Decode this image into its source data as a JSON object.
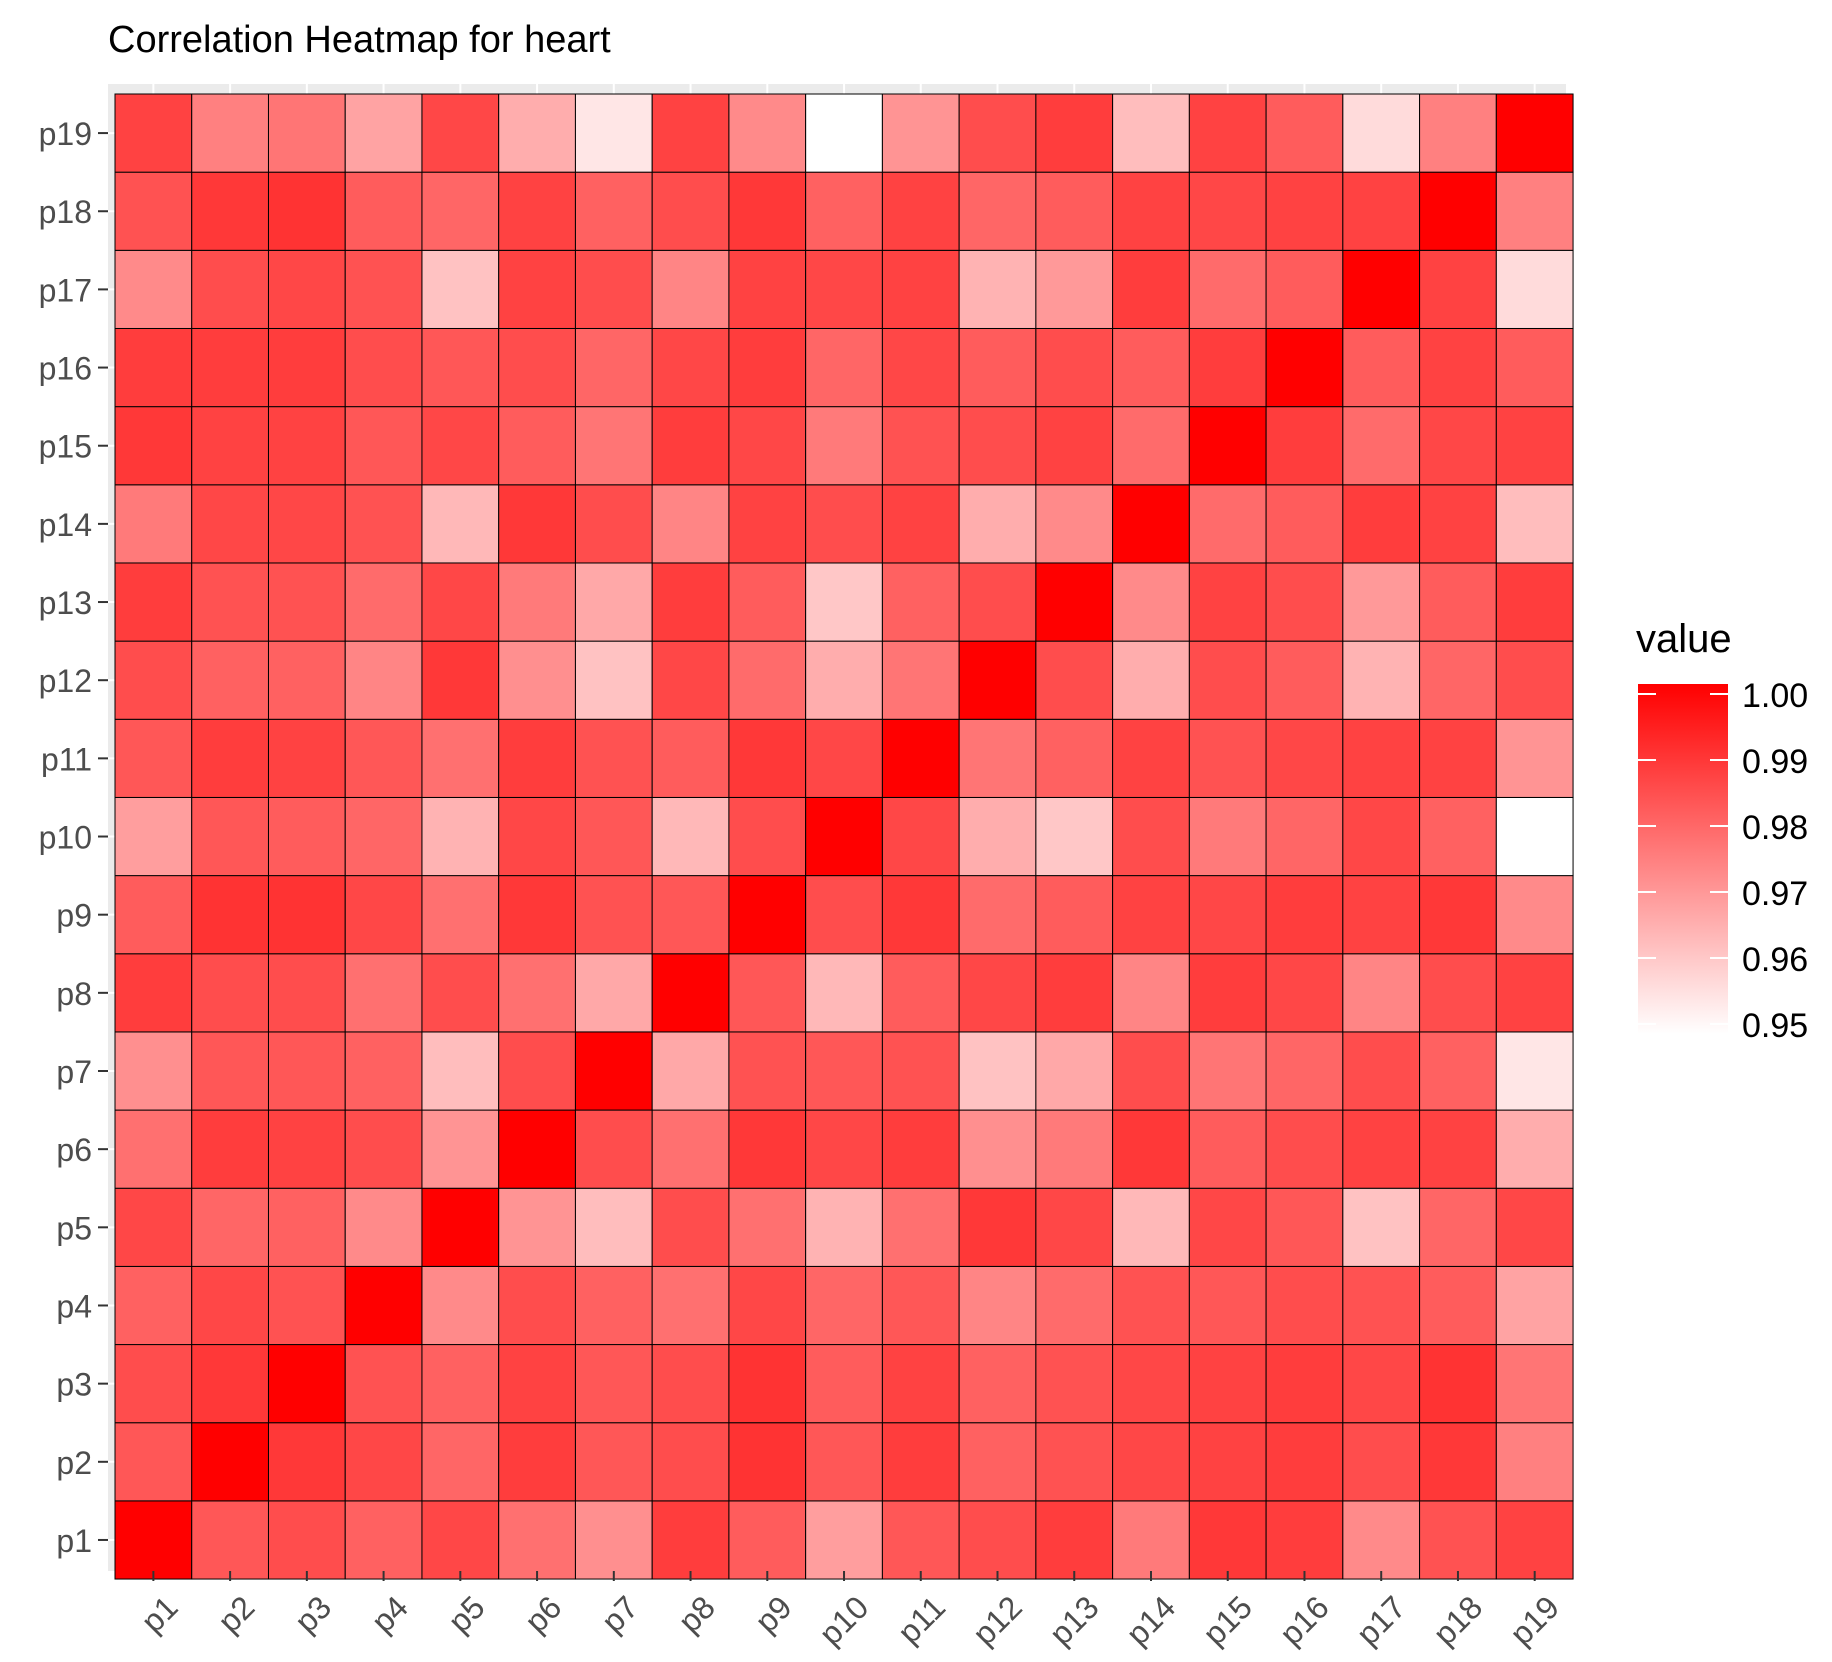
{
  "chart_data": {
    "type": "heatmap",
    "title": "Correlation Heatmap for heart",
    "xlabel": "",
    "ylabel": "",
    "x_categories": [
      "p1",
      "p2",
      "p3",
      "p4",
      "p5",
      "p6",
      "p7",
      "p8",
      "p9",
      "p10",
      "p11",
      "p12",
      "p13",
      "p14",
      "p15",
      "p16",
      "p17",
      "p18",
      "p19"
    ],
    "y_categories": [
      "p1",
      "p2",
      "p3",
      "p4",
      "p5",
      "p6",
      "p7",
      "p8",
      "p9",
      "p10",
      "p11",
      "p12",
      "p13",
      "p14",
      "p15",
      "p16",
      "p17",
      "p18",
      "p19"
    ],
    "legend": {
      "title": "value",
      "position": "right",
      "range": [
        0.95,
        1.0
      ],
      "breaks": [
        "1.00",
        "0.99",
        "0.98",
        "0.97",
        "0.96",
        "0.95"
      ],
      "low_color": "#ffffff",
      "high_color": "#ff0000"
    },
    "values": [
      [
        1.0,
        0.983,
        0.985,
        0.981,
        0.986,
        0.978,
        0.972,
        0.988,
        0.982,
        0.969,
        0.983,
        0.985,
        0.988,
        0.976,
        0.989,
        0.988,
        0.973,
        0.984,
        0.987
      ],
      [
        0.983,
        1.0,
        0.989,
        0.986,
        0.98,
        0.988,
        0.983,
        0.985,
        0.99,
        0.983,
        0.988,
        0.981,
        0.984,
        0.986,
        0.987,
        0.988,
        0.985,
        0.989,
        0.975
      ],
      [
        0.985,
        0.989,
        1.0,
        0.984,
        0.981,
        0.987,
        0.983,
        0.985,
        0.99,
        0.982,
        0.987,
        0.981,
        0.984,
        0.986,
        0.987,
        0.988,
        0.986,
        0.99,
        0.977
      ],
      [
        0.981,
        0.986,
        0.984,
        1.0,
        0.973,
        0.985,
        0.981,
        0.978,
        0.986,
        0.98,
        0.983,
        0.974,
        0.979,
        0.984,
        0.983,
        0.985,
        0.984,
        0.982,
        0.968
      ],
      [
        0.986,
        0.98,
        0.981,
        0.973,
        1.0,
        0.971,
        0.963,
        0.985,
        0.978,
        0.965,
        0.978,
        0.989,
        0.986,
        0.964,
        0.986,
        0.983,
        0.962,
        0.98,
        0.986
      ],
      [
        0.978,
        0.988,
        0.987,
        0.985,
        0.971,
        1.0,
        0.985,
        0.978,
        0.989,
        0.986,
        0.988,
        0.972,
        0.976,
        0.989,
        0.982,
        0.985,
        0.987,
        0.987,
        0.966
      ],
      [
        0.972,
        0.983,
        0.983,
        0.981,
        0.963,
        0.985,
        1.0,
        0.967,
        0.984,
        0.983,
        0.984,
        0.962,
        0.967,
        0.985,
        0.977,
        0.98,
        0.985,
        0.981,
        0.955
      ],
      [
        0.988,
        0.985,
        0.985,
        0.978,
        0.985,
        0.978,
        0.967,
        1.0,
        0.983,
        0.964,
        0.982,
        0.986,
        0.988,
        0.974,
        0.988,
        0.986,
        0.974,
        0.985,
        0.987
      ],
      [
        0.982,
        0.99,
        0.99,
        0.986,
        0.978,
        0.989,
        0.984,
        0.983,
        1.0,
        0.985,
        0.989,
        0.979,
        0.982,
        0.987,
        0.986,
        0.988,
        0.987,
        0.989,
        0.973
      ],
      [
        0.969,
        0.983,
        0.982,
        0.98,
        0.965,
        0.986,
        0.983,
        0.964,
        0.985,
        1.0,
        0.986,
        0.966,
        0.961,
        0.985,
        0.976,
        0.98,
        0.986,
        0.981,
        0.95
      ],
      [
        0.983,
        0.988,
        0.987,
        0.983,
        0.978,
        0.988,
        0.984,
        0.982,
        0.989,
        0.986,
        1.0,
        0.977,
        0.981,
        0.987,
        0.984,
        0.986,
        0.987,
        0.987,
        0.971
      ],
      [
        0.985,
        0.981,
        0.981,
        0.974,
        0.989,
        0.972,
        0.962,
        0.986,
        0.979,
        0.966,
        0.977,
        1.0,
        0.985,
        0.966,
        0.985,
        0.982,
        0.965,
        0.98,
        0.985
      ],
      [
        0.988,
        0.984,
        0.984,
        0.979,
        0.986,
        0.976,
        0.967,
        0.988,
        0.982,
        0.961,
        0.981,
        0.985,
        1.0,
        0.973,
        0.987,
        0.985,
        0.97,
        0.982,
        0.988
      ],
      [
        0.976,
        0.986,
        0.986,
        0.984,
        0.964,
        0.989,
        0.985,
        0.974,
        0.987,
        0.985,
        0.987,
        0.966,
        0.973,
        1.0,
        0.979,
        0.982,
        0.988,
        0.987,
        0.963
      ],
      [
        0.989,
        0.987,
        0.987,
        0.983,
        0.986,
        0.982,
        0.977,
        0.988,
        0.986,
        0.976,
        0.984,
        0.985,
        0.987,
        0.979,
        1.0,
        0.988,
        0.979,
        0.986,
        0.987
      ],
      [
        0.988,
        0.988,
        0.988,
        0.985,
        0.983,
        0.985,
        0.98,
        0.986,
        0.988,
        0.98,
        0.986,
        0.982,
        0.985,
        0.982,
        0.988,
        1.0,
        0.982,
        0.987,
        0.982
      ],
      [
        0.973,
        0.985,
        0.986,
        0.984,
        0.962,
        0.987,
        0.985,
        0.974,
        0.987,
        0.986,
        0.987,
        0.965,
        0.97,
        0.988,
        0.979,
        0.982,
        1.0,
        0.987,
        0.957
      ],
      [
        0.984,
        0.989,
        0.99,
        0.982,
        0.98,
        0.987,
        0.981,
        0.985,
        0.989,
        0.981,
        0.987,
        0.98,
        0.982,
        0.987,
        0.986,
        0.987,
        0.987,
        1.0,
        0.975
      ],
      [
        0.987,
        0.975,
        0.977,
        0.968,
        0.986,
        0.966,
        0.955,
        0.987,
        0.973,
        0.95,
        0.971,
        0.985,
        0.988,
        0.963,
        0.987,
        0.982,
        0.957,
        0.975,
        1.0
      ]
    ]
  }
}
